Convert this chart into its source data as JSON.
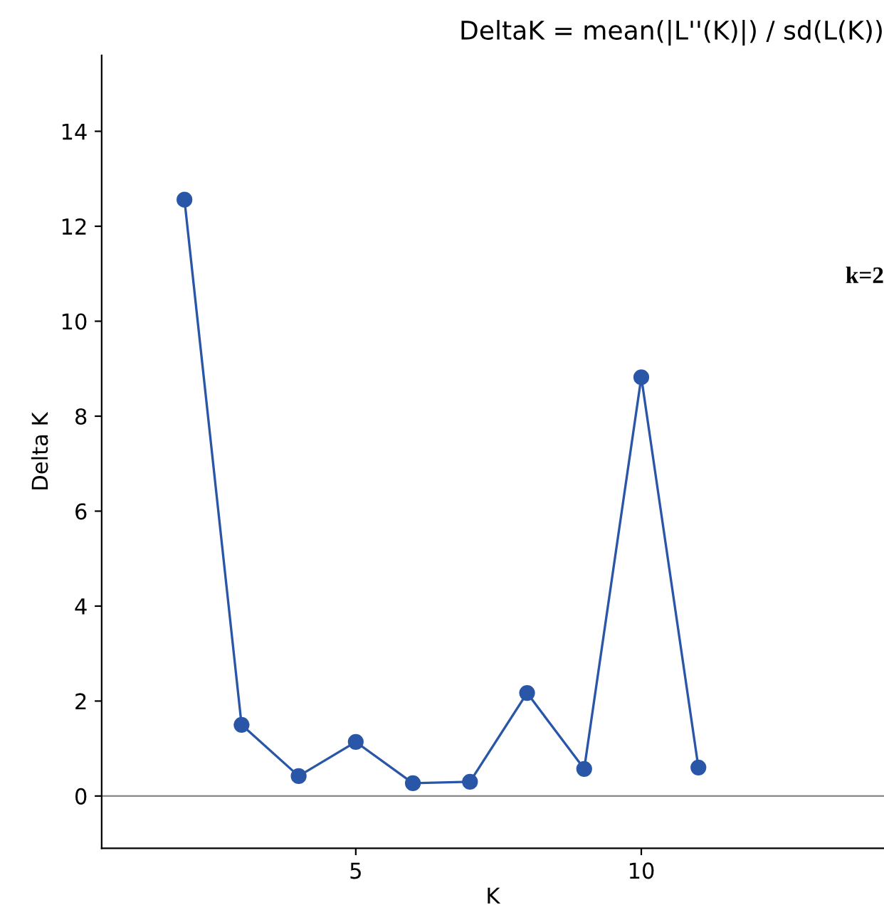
{
  "chart_data": {
    "type": "line",
    "title": "DeltaK = mean(|L''(K)|) / sd(L(K))",
    "xlabel": "K",
    "ylabel": "Delta K",
    "x": [
      2,
      3,
      4,
      5,
      6,
      7,
      8,
      9,
      10,
      11
    ],
    "series": [
      {
        "color": "#2a56a8",
        "values": [
          12.56,
          1.5,
          0.42,
          1.14,
          0.27,
          0.3,
          2.17,
          0.57,
          8.82,
          0.6
        ]
      }
    ],
    "marker": "circle",
    "line_style": "solid",
    "grid": false,
    "legend": false,
    "xlim": [
      0.55,
      14.25
    ],
    "ylim": [
      -1.1,
      15.6
    ],
    "xticks": [
      5,
      10
    ],
    "yticks": [
      0,
      2,
      4,
      6,
      8,
      10,
      12,
      14
    ],
    "ref_lines": [
      {
        "axis": "y",
        "value": 0,
        "color": "#888888"
      }
    ],
    "annotations": [
      "k=2"
    ]
  }
}
